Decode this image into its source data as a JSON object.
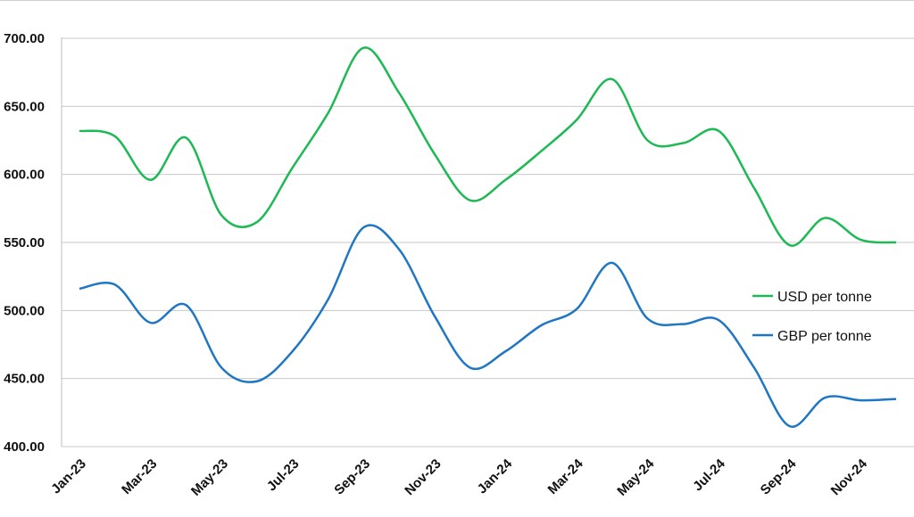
{
  "chart_data": {
    "type": "line",
    "title": "",
    "xlabel": "",
    "ylabel": "",
    "ylim": [
      400,
      700
    ],
    "yticks": [
      400,
      450,
      500,
      550,
      600,
      650,
      700
    ],
    "ytick_labels": [
      "400.00",
      "450.00",
      "500.00",
      "550.00",
      "600.00",
      "650.00",
      "700.00"
    ],
    "x": [
      "Jan-23",
      "Feb-23",
      "Mar-23",
      "Apr-23",
      "May-23",
      "Jun-23",
      "Jul-23",
      "Aug-23",
      "Sep-23",
      "Oct-23",
      "Nov-23",
      "Dec-23",
      "Jan-24",
      "Feb-24",
      "Mar-24",
      "Apr-24",
      "May-24",
      "Jun-24",
      "Jul-24",
      "Aug-24",
      "Sep-24",
      "Oct-24",
      "Nov-24",
      "Dec-24"
    ],
    "xtick_labels": [
      "Jan-23",
      "Mar-23",
      "May-23",
      "Jul-23",
      "Sep-23",
      "Nov-23",
      "Jan-24",
      "Mar-24",
      "May-24",
      "Jul-24",
      "Sep-24",
      "Nov-24"
    ],
    "grid": "horizontal",
    "legend_position": "right",
    "series": [
      {
        "name": "USD per tonne",
        "color": "#1db954",
        "values": [
          632,
          628,
          596,
          627,
          570,
          565,
          605,
          645,
          693,
          660,
          615,
          581,
          596,
          617,
          640,
          670,
          625,
          623,
          632,
          590,
          548,
          568,
          552,
          550
        ]
      },
      {
        "name": "GBP per tonne",
        "color": "#1f77c4",
        "values": [
          516,
          519,
          491,
          504,
          458,
          448,
          470,
          508,
          561,
          545,
          496,
          458,
          470,
          489,
          501,
          535,
          494,
          490,
          493,
          458,
          415,
          436,
          434,
          435
        ]
      }
    ]
  }
}
